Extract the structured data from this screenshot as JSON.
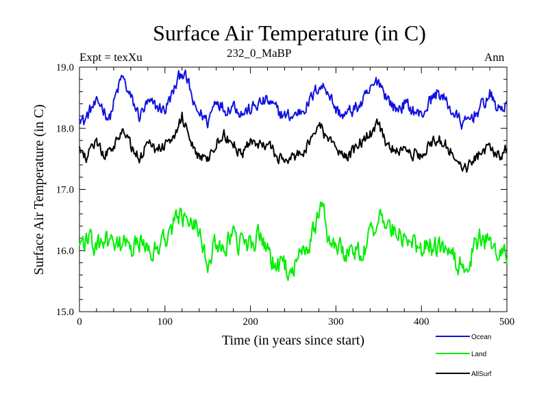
{
  "chart_data": {
    "type": "line",
    "title": "Surface Air Temperature (in C)",
    "subtitle_left": "Expt = texXu",
    "subtitle_center": "232_0_MaBP",
    "subtitle_right": "Ann",
    "xlabel": "Time (in years since start)",
    "ylabel": "Surface Air Temperature (in C)",
    "xlim": [
      0,
      500
    ],
    "ylim": [
      15.0,
      19.0
    ],
    "xticks": [
      0,
      100,
      200,
      300,
      400,
      500
    ],
    "yticks": [
      "15.0",
      "16.0",
      "17.0",
      "18.0",
      "19.0"
    ],
    "legend_position": "bottom-right",
    "series": [
      {
        "name": "Ocean",
        "color": "#1010e0",
        "baseline": 18.4,
        "noise": 0.1,
        "anchors": [
          [
            0,
            18.25
          ],
          [
            5,
            18.1
          ],
          [
            15,
            18.35
          ],
          [
            25,
            18.4
          ],
          [
            35,
            18.15
          ],
          [
            42,
            18.5
          ],
          [
            50,
            18.85
          ],
          [
            58,
            18.55
          ],
          [
            70,
            18.2
          ],
          [
            80,
            18.4
          ],
          [
            90,
            18.35
          ],
          [
            100,
            18.3
          ],
          [
            110,
            18.6
          ],
          [
            120,
            18.95
          ],
          [
            128,
            18.7
          ],
          [
            135,
            18.3
          ],
          [
            145,
            18.2
          ],
          [
            150,
            18.1
          ],
          [
            160,
            18.5
          ],
          [
            170,
            18.3
          ],
          [
            180,
            18.4
          ],
          [
            190,
            18.25
          ],
          [
            200,
            18.3
          ],
          [
            210,
            18.4
          ],
          [
            220,
            18.45
          ],
          [
            230,
            18.3
          ],
          [
            240,
            18.2
          ],
          [
            250,
            18.2
          ],
          [
            260,
            18.3
          ],
          [
            270,
            18.45
          ],
          [
            280,
            18.7
          ],
          [
            290,
            18.65
          ],
          [
            300,
            18.3
          ],
          [
            310,
            18.2
          ],
          [
            320,
            18.3
          ],
          [
            330,
            18.4
          ],
          [
            340,
            18.6
          ],
          [
            350,
            18.8
          ],
          [
            360,
            18.5
          ],
          [
            370,
            18.3
          ],
          [
            380,
            18.4
          ],
          [
            390,
            18.3
          ],
          [
            400,
            18.2
          ],
          [
            410,
            18.45
          ],
          [
            420,
            18.6
          ],
          [
            430,
            18.4
          ],
          [
            440,
            18.2
          ],
          [
            450,
            18.05
          ],
          [
            460,
            18.2
          ],
          [
            470,
            18.35
          ],
          [
            480,
            18.55
          ],
          [
            490,
            18.3
          ],
          [
            500,
            18.4
          ]
        ]
      },
      {
        "name": "Land",
        "color": "#00ee00",
        "baseline": 16.1,
        "noise": 0.16,
        "anchors": [
          [
            0,
            16.1
          ],
          [
            10,
            16.2
          ],
          [
            20,
            16.0
          ],
          [
            30,
            16.2
          ],
          [
            40,
            16.0
          ],
          [
            50,
            16.1
          ],
          [
            60,
            16.0
          ],
          [
            70,
            16.1
          ],
          [
            80,
            16.1
          ],
          [
            90,
            16.0
          ],
          [
            100,
            16.2
          ],
          [
            110,
            16.45
          ],
          [
            120,
            16.55
          ],
          [
            130,
            16.6
          ],
          [
            140,
            16.35
          ],
          [
            150,
            15.85
          ],
          [
            160,
            16.1
          ],
          [
            170,
            16.1
          ],
          [
            180,
            16.2
          ],
          [
            190,
            16.05
          ],
          [
            200,
            16.15
          ],
          [
            210,
            16.2
          ],
          [
            220,
            15.95
          ],
          [
            230,
            15.75
          ],
          [
            240,
            15.7
          ],
          [
            250,
            15.75
          ],
          [
            260,
            15.9
          ],
          [
            270,
            16.15
          ],
          [
            280,
            16.6
          ],
          [
            285,
            16.85
          ],
          [
            290,
            16.3
          ],
          [
            300,
            16.1
          ],
          [
            310,
            16.0
          ],
          [
            320,
            16.0
          ],
          [
            330,
            16.0
          ],
          [
            340,
            16.2
          ],
          [
            350,
            16.5
          ],
          [
            360,
            16.45
          ],
          [
            370,
            16.3
          ],
          [
            380,
            16.2
          ],
          [
            390,
            16.1
          ],
          [
            400,
            16.05
          ],
          [
            410,
            16.1
          ],
          [
            420,
            16.0
          ],
          [
            430,
            16.0
          ],
          [
            440,
            15.8
          ],
          [
            450,
            15.7
          ],
          [
            460,
            16.0
          ],
          [
            470,
            16.2
          ],
          [
            480,
            16.15
          ],
          [
            490,
            15.95
          ],
          [
            500,
            15.9
          ]
        ]
      },
      {
        "name": "AllSurf",
        "color": "#000000",
        "baseline": 17.7,
        "noise": 0.09,
        "anchors": [
          [
            0,
            17.65
          ],
          [
            10,
            17.55
          ],
          [
            20,
            17.75
          ],
          [
            30,
            17.55
          ],
          [
            40,
            17.75
          ],
          [
            50,
            18.0
          ],
          [
            60,
            17.7
          ],
          [
            70,
            17.5
          ],
          [
            80,
            17.75
          ],
          [
            90,
            17.65
          ],
          [
            100,
            17.75
          ],
          [
            110,
            17.9
          ],
          [
            120,
            18.2
          ],
          [
            130,
            17.85
          ],
          [
            140,
            17.55
          ],
          [
            150,
            17.45
          ],
          [
            160,
            17.75
          ],
          [
            170,
            17.9
          ],
          [
            180,
            17.75
          ],
          [
            190,
            17.6
          ],
          [
            200,
            17.75
          ],
          [
            210,
            17.7
          ],
          [
            220,
            17.7
          ],
          [
            230,
            17.55
          ],
          [
            240,
            17.45
          ],
          [
            250,
            17.5
          ],
          [
            260,
            17.6
          ],
          [
            270,
            17.75
          ],
          [
            280,
            18.1
          ],
          [
            290,
            17.8
          ],
          [
            300,
            17.6
          ],
          [
            310,
            17.55
          ],
          [
            320,
            17.6
          ],
          [
            330,
            17.8
          ],
          [
            340,
            17.9
          ],
          [
            350,
            18.05
          ],
          [
            360,
            17.75
          ],
          [
            370,
            17.6
          ],
          [
            380,
            17.7
          ],
          [
            390,
            17.6
          ],
          [
            400,
            17.55
          ],
          [
            410,
            17.75
          ],
          [
            420,
            17.85
          ],
          [
            430,
            17.7
          ],
          [
            440,
            17.5
          ],
          [
            450,
            17.35
          ],
          [
            460,
            17.45
          ],
          [
            470,
            17.6
          ],
          [
            480,
            17.75
          ],
          [
            490,
            17.55
          ],
          [
            500,
            17.65
          ]
        ]
      }
    ]
  }
}
